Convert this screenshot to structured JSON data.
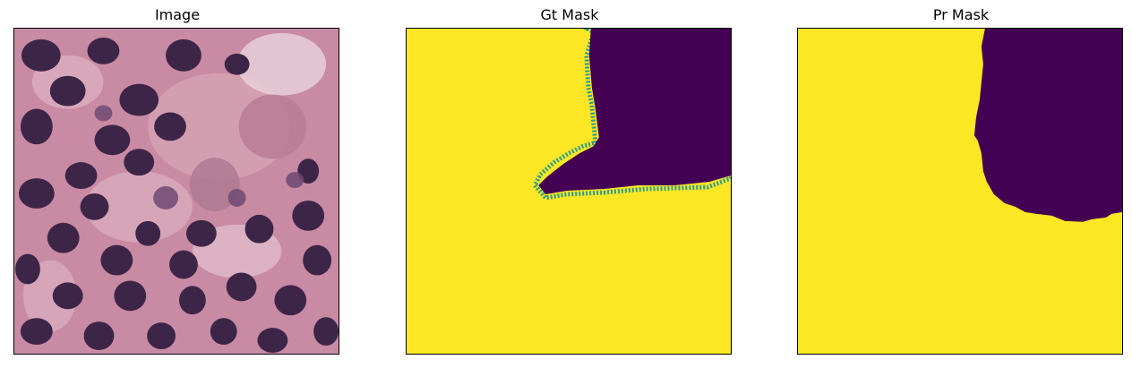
{
  "panels": [
    {
      "title": "Image",
      "content": "tissue-micrograph"
    },
    {
      "title": "Gt Mask",
      "content": "segmentation-mask",
      "colors": {
        "foreground": "#fde725",
        "background": "#440154"
      }
    },
    {
      "title": "Pr Mask",
      "content": "segmentation-mask",
      "colors": {
        "foreground": "#fde725",
        "background": "#440154"
      }
    }
  ]
}
